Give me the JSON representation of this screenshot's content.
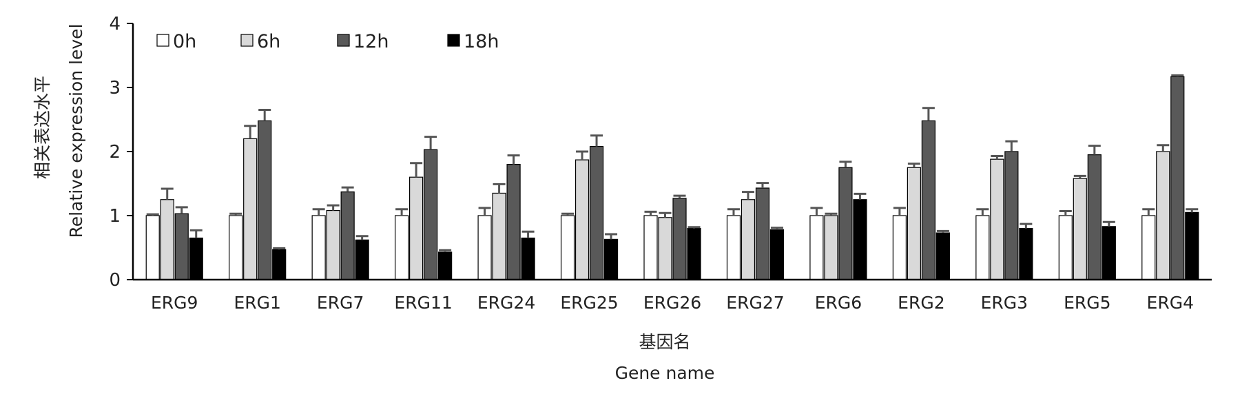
{
  "chart_data": {
    "type": "bar",
    "title": "",
    "xlabel_cn": "基因名",
    "xlabel": "Gene name",
    "ylabel_cn": "相关表达水平",
    "ylabel": "Relative expression level",
    "ylim": [
      0,
      4
    ],
    "yticks": [
      "0",
      "1",
      "2",
      "3",
      "4"
    ],
    "grid": false,
    "legend_position": "top-left",
    "categories": [
      "ERG9",
      "ERG1",
      "ERG7",
      "ERG11",
      "ERG24",
      "ERG25",
      "ERG26",
      "ERG27",
      "ERG6",
      "ERG2",
      "ERG3",
      "ERG5",
      "ERG4"
    ],
    "series": [
      {
        "name": "0h",
        "color": "#ffffff",
        "values": [
          1.0,
          1.0,
          1.0,
          1.0,
          1.0,
          1.0,
          1.0,
          1.0,
          1.0,
          1.0,
          1.0,
          1.0,
          1.0
        ],
        "errors": [
          0.02,
          0.03,
          0.1,
          0.1,
          0.12,
          0.03,
          0.06,
          0.1,
          0.12,
          0.12,
          0.1,
          0.07,
          0.1
        ]
      },
      {
        "name": "6h",
        "color": "#d9d9d9",
        "values": [
          1.25,
          2.2,
          1.08,
          1.6,
          1.35,
          1.87,
          0.97,
          1.25,
          1.0,
          1.75,
          1.88,
          1.58,
          2.0
        ],
        "errors": [
          0.17,
          0.2,
          0.08,
          0.22,
          0.14,
          0.13,
          0.07,
          0.12,
          0.03,
          0.06,
          0.05,
          0.04,
          0.1
        ]
      },
      {
        "name": "12h",
        "color": "#595959",
        "values": [
          1.03,
          2.48,
          1.37,
          2.03,
          1.8,
          2.08,
          1.27,
          1.43,
          1.75,
          2.48,
          2.0,
          1.95,
          3.17
        ],
        "errors": [
          0.1,
          0.17,
          0.07,
          0.2,
          0.14,
          0.17,
          0.04,
          0.08,
          0.09,
          0.2,
          0.16,
          0.14,
          0.02
        ]
      },
      {
        "name": "18h",
        "color": "#000000",
        "values": [
          0.65,
          0.47,
          0.62,
          0.43,
          0.65,
          0.63,
          0.8,
          0.78,
          1.25,
          0.73,
          0.8,
          0.83,
          1.05
        ],
        "errors": [
          0.12,
          0.02,
          0.06,
          0.03,
          0.1,
          0.08,
          0.02,
          0.03,
          0.09,
          0.03,
          0.07,
          0.07,
          0.05
        ]
      }
    ]
  }
}
